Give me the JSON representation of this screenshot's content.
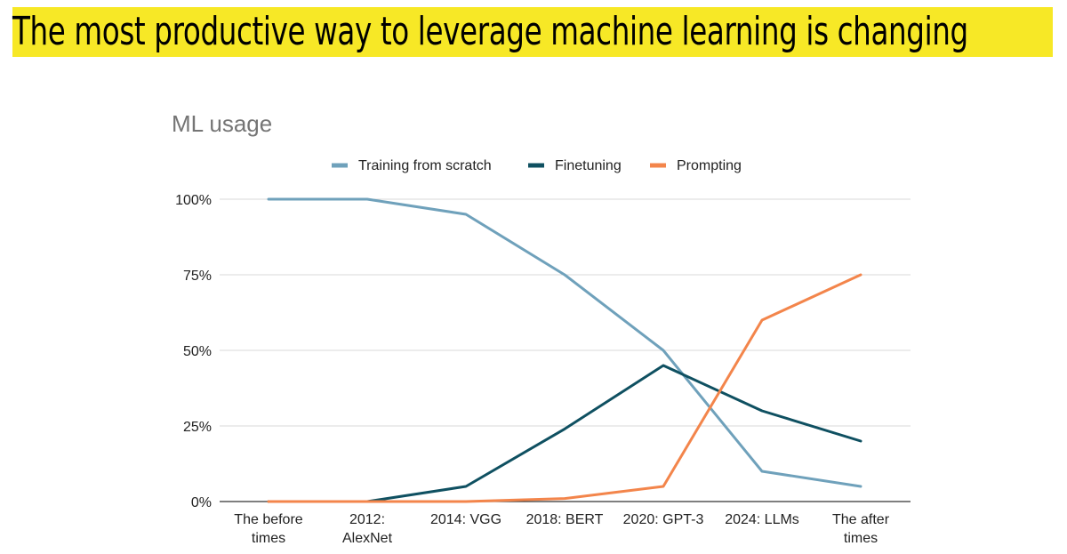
{
  "banner": {
    "title": "The most productive way to leverage machine learning is changing",
    "background": "#f7e826"
  },
  "chart_data": {
    "type": "line",
    "title": "ML usage",
    "xlabel": "",
    "ylabel": "",
    "categories": [
      [
        "The before",
        "times"
      ],
      [
        "2012:",
        "AlexNet"
      ],
      [
        "2014: VGG"
      ],
      [
        "2018: BERT"
      ],
      [
        "2020: GPT-3"
      ],
      [
        "2024: LLMs"
      ],
      [
        "The after",
        "times"
      ]
    ],
    "y_ticks": [
      "0%",
      "25%",
      "50%",
      "75%",
      "100%"
    ],
    "ylim": [
      0,
      100
    ],
    "grid": true,
    "legend_position": "top",
    "series": [
      {
        "name": "Training from scratch",
        "color": "#6fa1bb",
        "values": [
          100,
          100,
          95,
          75,
          50,
          10,
          5
        ]
      },
      {
        "name": "Finetuning",
        "color": "#0f5061",
        "values": [
          0,
          0,
          5,
          24,
          45,
          30,
          20
        ]
      },
      {
        "name": "Prompting",
        "color": "#f3854b",
        "values": [
          0,
          0,
          0,
          1,
          5,
          60,
          75
        ]
      }
    ]
  }
}
